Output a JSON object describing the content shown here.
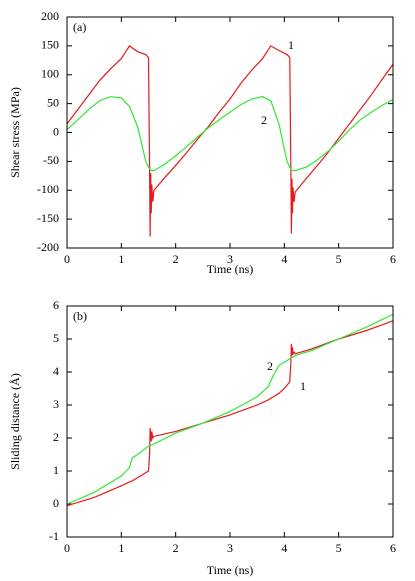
{
  "chart_data": [
    {
      "type": "line",
      "panel_label": "(a)",
      "x_label": "Time (ns)",
      "y_label": "Shear stress (MPa)",
      "xlim": [
        0,
        6
      ],
      "xticks": [
        0,
        1,
        2,
        3,
        4,
        5,
        6
      ],
      "ylim": [
        -200,
        200
      ],
      "yticks": [
        -200,
        -150,
        -100,
        -50,
        0,
        50,
        100,
        150,
        200
      ],
      "x": [
        0,
        0.2,
        0.4,
        0.6,
        0.8,
        1.0,
        1.15,
        1.3,
        1.45,
        1.5,
        1.52,
        1.53,
        1.54,
        1.55,
        1.56,
        1.58,
        1.6,
        1.8,
        2.0,
        2.2,
        2.4,
        2.6,
        2.8,
        3.0,
        3.2,
        3.4,
        3.6,
        3.75,
        3.9,
        4.05,
        4.1,
        4.12,
        4.13,
        4.14,
        4.15,
        4.16,
        4.18,
        4.2,
        4.4,
        4.6,
        4.8,
        5.0,
        5.2,
        5.4,
        5.6,
        5.8,
        6.0
      ],
      "series": [
        {
          "name": "1",
          "color": "#e41a1c",
          "values": [
            15,
            40,
            65,
            90,
            110,
            128,
            150,
            140,
            135,
            130,
            -60,
            -180,
            -70,
            -140,
            -90,
            -120,
            -100,
            -78,
            -57,
            -35,
            -12,
            10,
            35,
            58,
            85,
            108,
            128,
            150,
            142,
            135,
            130,
            -60,
            -175,
            -80,
            -140,
            -95,
            -120,
            -103,
            -80,
            -58,
            -35,
            -10,
            15,
            40,
            65,
            92,
            118
          ]
        },
        {
          "name": "2",
          "color": "#33e633",
          "values": [
            5,
            22,
            40,
            55,
            62,
            60,
            45,
            10,
            -50,
            -60,
            -63,
            -64,
            -65,
            -65,
            -66,
            -66,
            -66,
            -55,
            -40,
            -25,
            -8,
            8,
            22,
            35,
            48,
            58,
            62,
            55,
            15,
            -50,
            -60,
            -63,
            -64,
            -65,
            -65,
            -66,
            -66,
            -66,
            -60,
            -48,
            -33,
            -15,
            5,
            22,
            35,
            47,
            57
          ]
        }
      ]
    },
    {
      "type": "line",
      "panel_label": "(b)",
      "x_label": "Time (ns)",
      "y_label": "Sliding distance (Å)",
      "xlim": [
        0,
        6
      ],
      "xticks": [
        0,
        1,
        2,
        3,
        4,
        5,
        6
      ],
      "ylim": [
        -1,
        6
      ],
      "yticks": [
        -1,
        0,
        1,
        2,
        3,
        4,
        5,
        6
      ],
      "x": [
        0,
        0.5,
        1.0,
        1.15,
        1.2,
        1.3,
        1.5,
        1.52,
        1.53,
        1.55,
        1.56,
        1.58,
        1.6,
        2.0,
        2.5,
        3.0,
        3.5,
        3.7,
        3.8,
        3.9,
        4.0,
        4.1,
        4.12,
        4.13,
        4.14,
        4.15,
        4.16,
        4.18,
        4.2,
        4.5,
        5.0,
        5.5,
        6.0
      ],
      "series": [
        {
          "name": "1",
          "color": "#e41a1c",
          "values": [
            -0.05,
            0.2,
            0.55,
            0.67,
            0.7,
            0.8,
            1.0,
            1.5,
            2.3,
            1.9,
            2.2,
            2.0,
            2.05,
            2.2,
            2.45,
            2.7,
            3.0,
            3.15,
            3.25,
            3.35,
            3.5,
            3.7,
            4.3,
            4.85,
            4.5,
            4.75,
            4.55,
            4.6,
            4.55,
            4.7,
            5.0,
            5.25,
            5.55
          ]
        },
        {
          "name": "2",
          "color": "#33e633",
          "values": [
            0,
            0.35,
            0.85,
            1.1,
            1.4,
            1.5,
            1.75,
            1.76,
            1.77,
            1.78,
            1.79,
            1.8,
            1.82,
            2.15,
            2.45,
            2.8,
            3.25,
            3.55,
            3.9,
            4.2,
            4.3,
            4.4,
            4.42,
            4.43,
            4.44,
            4.45,
            4.46,
            4.47,
            4.5,
            4.65,
            5.0,
            5.35,
            5.75
          ]
        }
      ]
    }
  ]
}
